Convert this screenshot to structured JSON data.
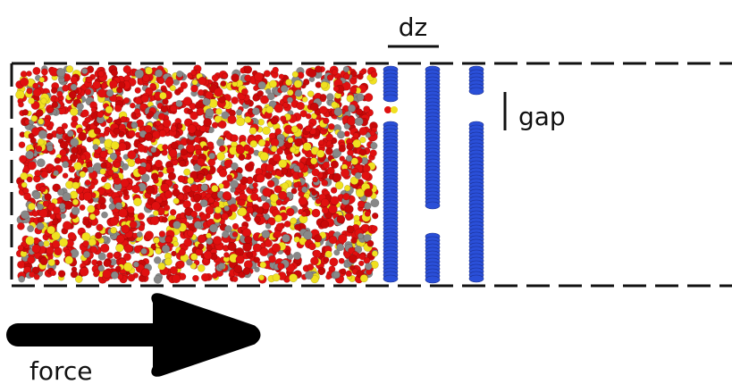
{
  "annotations": {
    "spacing": "dz",
    "gap": "gap",
    "arrow": "force"
  }
}
